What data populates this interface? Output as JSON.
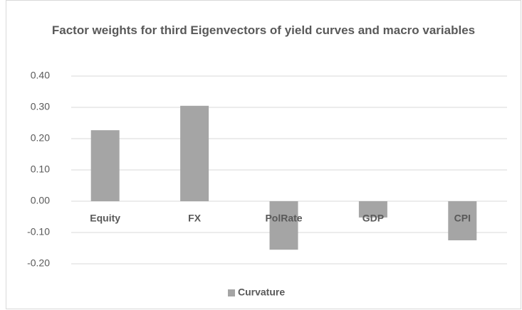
{
  "chart_data": {
    "type": "bar",
    "title": "Factor weights for third Eigenvectors of yield curves and macro variables",
    "categories": [
      "Equity",
      "FX",
      "PolRate",
      "GDP",
      "CPI"
    ],
    "series": [
      {
        "name": "Curvature",
        "color": "#a5a5a5",
        "values": [
          0.227,
          0.305,
          -0.155,
          -0.052,
          -0.125
        ]
      }
    ],
    "ylim": [
      -0.2,
      0.4
    ],
    "yticks": [
      {
        "value": -0.2,
        "label": "-0.20"
      },
      {
        "value": -0.1,
        "label": "-0.10"
      },
      {
        "value": 0,
        "label": "0.00"
      },
      {
        "value": 0.1,
        "label": "0.10"
      },
      {
        "value": 0.2,
        "label": "0.20"
      },
      {
        "value": 0.3,
        "label": "0.30"
      },
      {
        "value": 0.4,
        "label": "0.40"
      }
    ],
    "grid": true,
    "legend": "bottom"
  }
}
